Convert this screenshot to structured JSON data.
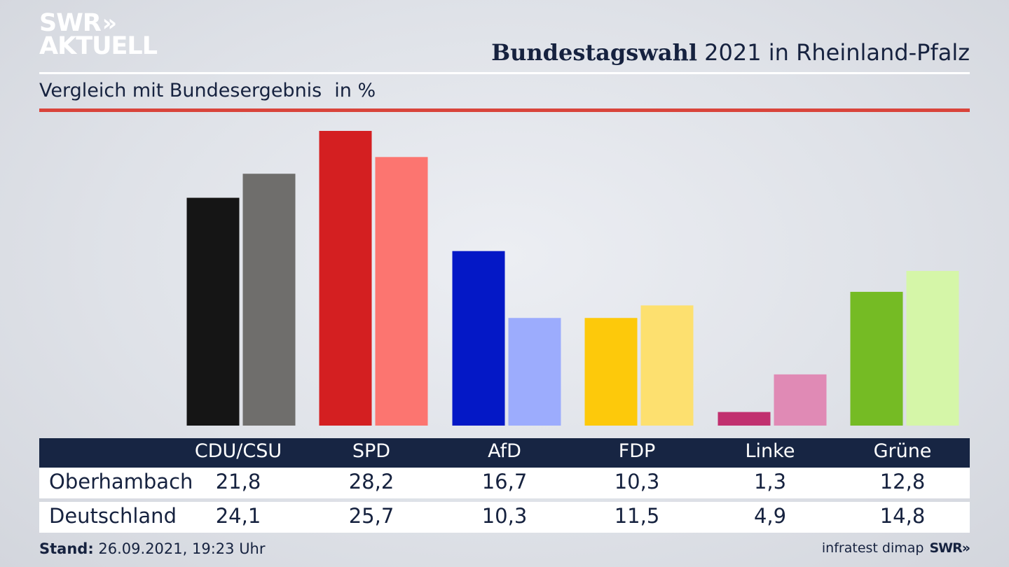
{
  "brand": {
    "logo_line1": "SWR",
    "logo_chevrons": "»",
    "logo_line2": "AKTUELL",
    "footer_source": "infratest dimap",
    "footer_logo": "SWR»"
  },
  "header": {
    "title_bold": "Bundestagswahl",
    "title_rest": "2021 in Rheinland-Pfalz",
    "subtitle": "Vergleich mit Bundesergebnis",
    "unit": "in %"
  },
  "footer": {
    "stand_label": "Stand:",
    "stand_value": "26.09.2021, 19:23 Uhr"
  },
  "table": {
    "rows": [
      {
        "label": "Oberhambach",
        "values": [
          "21,8",
          "28,2",
          "16,7",
          "10,3",
          "1,3",
          "12,8"
        ]
      },
      {
        "label": "Deutschland",
        "values": [
          "24,1",
          "25,7",
          "10,3",
          "11,5",
          "4,9",
          "14,8"
        ]
      }
    ]
  },
  "chart_data": {
    "type": "bar",
    "title": "Bundestagswahl 2021 in Rheinland-Pfalz",
    "subtitle": "Vergleich mit Bundesergebnis",
    "ylabel": "in %",
    "categories": [
      "CDU/CSU",
      "SPD",
      "AfD",
      "FDP",
      "Linke",
      "Grüne"
    ],
    "ylim": [
      0,
      28.2
    ],
    "series": [
      {
        "name": "Oberhambach",
        "values": [
          21.8,
          28.2,
          16.7,
          10.3,
          1.3,
          12.8
        ],
        "colors": [
          "#151515",
          "#d41f21",
          "#0418c6",
          "#fdc90b",
          "#c1306f",
          "#75bb24"
        ]
      },
      {
        "name": "Deutschland",
        "values": [
          24.1,
          25.7,
          10.3,
          11.5,
          4.9,
          14.8
        ],
        "colors": [
          "#6f6e6c",
          "#fc7570",
          "#9cacfd",
          "#fde06f",
          "#e08ab5",
          "#d5f6a8"
        ]
      }
    ]
  }
}
